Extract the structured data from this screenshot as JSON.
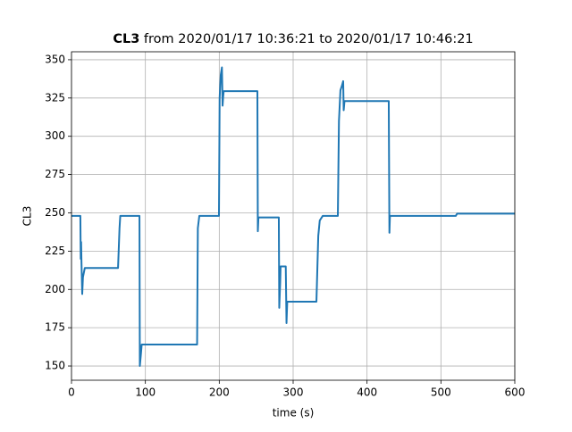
{
  "chart_data": {
    "type": "line",
    "title_parts": [
      "CL3",
      "from 2020/01/17 10:36:21 to 2020/01/17 10:46:21"
    ],
    "xlabel": "time (s)",
    "ylabel": "CL3",
    "x": [
      0,
      12,
      12.5,
      13,
      13.5,
      14.5,
      15.5,
      18,
      40,
      63,
      65,
      66,
      80,
      92,
      92.5,
      94,
      95,
      130,
      170,
      171,
      173,
      199.6,
      200.5,
      202,
      203.6,
      204.5,
      205.3,
      206,
      230,
      251.6,
      252.2,
      253,
      280.6,
      281.2,
      282.5,
      283,
      290,
      291,
      292,
      331.5,
      334,
      336,
      340,
      360.5,
      362,
      364,
      366,
      367.7,
      368.4,
      369.5,
      400,
      429.4,
      430.3,
      431,
      480,
      520,
      522,
      600
    ],
    "values": [
      248,
      248,
      220,
      231,
      218,
      197,
      208,
      214,
      214,
      214,
      240,
      248,
      248,
      248,
      150,
      158,
      164,
      164,
      164,
      240,
      248,
      248,
      325,
      340,
      345,
      320,
      326,
      329.5,
      329.5,
      329.5,
      238,
      247,
      247,
      188,
      205,
      215,
      215,
      178,
      192,
      192,
      235,
      245,
      248,
      248,
      310,
      330,
      333,
      336,
      317,
      323,
      323,
      323,
      237,
      248,
      248,
      248,
      249.5,
      249.5
    ],
    "color": "#1f77b4",
    "xlim": [
      0,
      600
    ],
    "ylim": [
      140.7,
      355.2
    ],
    "xticks": [
      0,
      100,
      200,
      300,
      400,
      500,
      600
    ],
    "yticks": [
      150,
      175,
      200,
      225,
      250,
      275,
      300,
      325,
      350
    ],
    "grid": true
  }
}
